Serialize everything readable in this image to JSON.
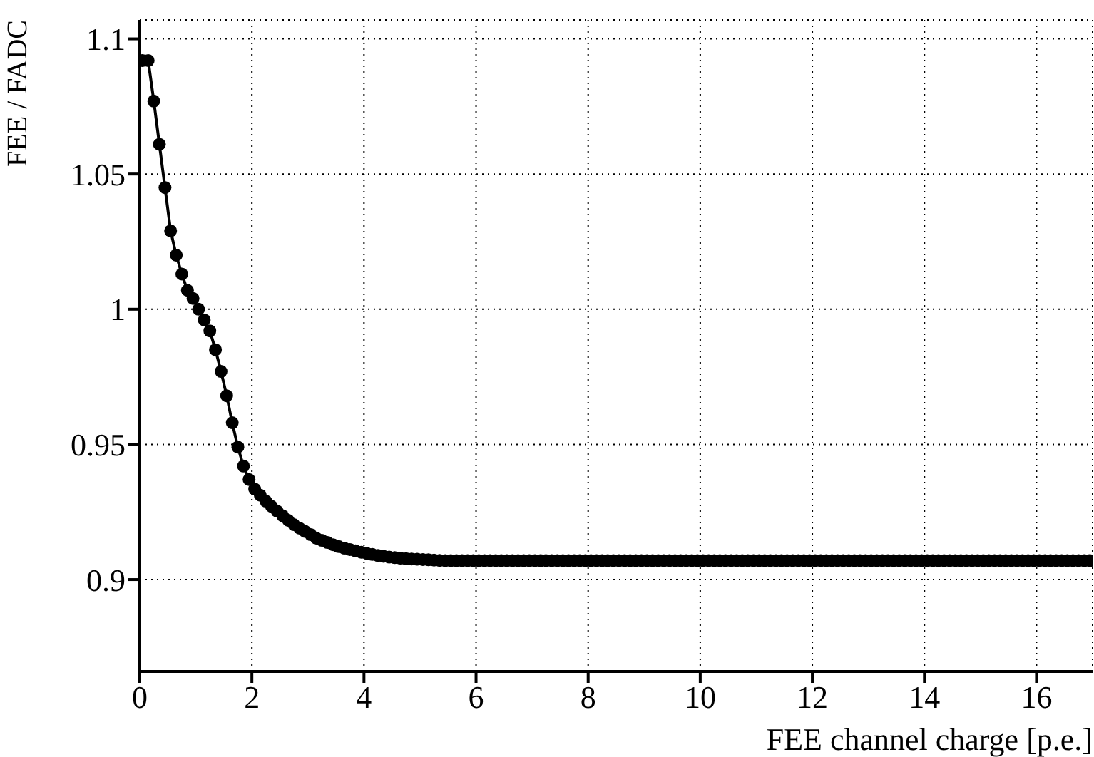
{
  "chart_data": {
    "type": "line",
    "xlabel": "FEE channel charge [p.e.]",
    "ylabel": "FEE / FADC",
    "xlim": [
      0,
      17
    ],
    "xticks": [
      0,
      2,
      4,
      6,
      8,
      10,
      12,
      14,
      16
    ],
    "ylim": [
      0.866,
      1.107
    ],
    "yticks": [
      0.9,
      0.95,
      1,
      1.05,
      1.1
    ],
    "grid": true,
    "marker": "circle",
    "line_style": "solid",
    "x": [
      0.05,
      0.15,
      0.25,
      0.35,
      0.45,
      0.55,
      0.65,
      0.75,
      0.85,
      0.95,
      1.05,
      1.15,
      1.25,
      1.35,
      1.45,
      1.55,
      1.65,
      1.75,
      1.85,
      1.95,
      2.05,
      2.15,
      2.25,
      2.35,
      2.45,
      2.55,
      2.65,
      2.75,
      2.85,
      2.95,
      3.05,
      3.15,
      3.25,
      3.35,
      3.45,
      3.55,
      3.65,
      3.75,
      3.85,
      3.95,
      4.05,
      4.15,
      4.25,
      4.35,
      4.45,
      4.55,
      4.65,
      4.75,
      4.85,
      4.95,
      5.05,
      5.15,
      5.25,
      5.35,
      5.45,
      5.55,
      5.65,
      5.75,
      5.85,
      5.95,
      6.05,
      6.15,
      6.25,
      6.35,
      6.45,
      6.55,
      6.65,
      6.75,
      6.85,
      6.95,
      7.05,
      7.15,
      7.25,
      7.35,
      7.45,
      7.55,
      7.65,
      7.75,
      7.85,
      7.95,
      8.05,
      8.15,
      8.25,
      8.35,
      8.45,
      8.55,
      8.65,
      8.75,
      8.85,
      8.95,
      9.05,
      9.15,
      9.25,
      9.35,
      9.45,
      9.55,
      9.65,
      9.75,
      9.85,
      9.95,
      10.05,
      10.15,
      10.25,
      10.35,
      10.45,
      10.55,
      10.65,
      10.75,
      10.85,
      10.95,
      11.05,
      11.15,
      11.25,
      11.35,
      11.45,
      11.55,
      11.65,
      11.75,
      11.85,
      11.95,
      12.05,
      12.15,
      12.25,
      12.35,
      12.45,
      12.55,
      12.65,
      12.75,
      12.85,
      12.95,
      13.05,
      13.15,
      13.25,
      13.35,
      13.45,
      13.55,
      13.65,
      13.75,
      13.85,
      13.95,
      14.05,
      14.15,
      14.25,
      14.35,
      14.45,
      14.55,
      14.65,
      14.75,
      14.85,
      14.95,
      15.05,
      15.15,
      15.25,
      15.35,
      15.45,
      15.55,
      15.65,
      15.75,
      15.85,
      15.95,
      16.05,
      16.15,
      16.25,
      16.35,
      16.45,
      16.55,
      16.65,
      16.75,
      16.85,
      16.95
    ],
    "series": [
      {
        "color": "#000000",
        "values": [
          1.092,
          1.092,
          1.077,
          1.061,
          1.045,
          1.029,
          1.02,
          1.013,
          1.007,
          1.004,
          1.0,
          0.996,
          0.992,
          0.985,
          0.977,
          0.968,
          0.958,
          0.949,
          0.942,
          0.937,
          0.9335,
          0.9312,
          0.929,
          0.9271,
          0.9253,
          0.9236,
          0.9219,
          0.9203,
          0.919,
          0.9178,
          0.9166,
          0.9153,
          0.9145,
          0.9137,
          0.9129,
          0.9122,
          0.9116,
          0.9111,
          0.9106,
          0.9101,
          0.9097,
          0.9093,
          0.9089,
          0.9086,
          0.9083,
          0.9081,
          0.9079,
          0.9077,
          0.9076,
          0.9075,
          0.9074,
          0.9073,
          0.9072,
          0.9071,
          0.907,
          0.907,
          0.907,
          0.907,
          0.907,
          0.907,
          0.907,
          0.907,
          0.907,
          0.907,
          0.907,
          0.907,
          0.907,
          0.907,
          0.907,
          0.907,
          0.907,
          0.907,
          0.907,
          0.907,
          0.907,
          0.907,
          0.907,
          0.907,
          0.907,
          0.907,
          0.907,
          0.907,
          0.907,
          0.907,
          0.907,
          0.907,
          0.907,
          0.907,
          0.907,
          0.907,
          0.907,
          0.907,
          0.907,
          0.907,
          0.907,
          0.907,
          0.907,
          0.907,
          0.907,
          0.907,
          0.907,
          0.907,
          0.907,
          0.907,
          0.907,
          0.907,
          0.907,
          0.907,
          0.907,
          0.907,
          0.907,
          0.907,
          0.907,
          0.907,
          0.907,
          0.907,
          0.907,
          0.907,
          0.907,
          0.907,
          0.907,
          0.907,
          0.907,
          0.907,
          0.907,
          0.907,
          0.907,
          0.907,
          0.907,
          0.907,
          0.907,
          0.907,
          0.907,
          0.907,
          0.907,
          0.907,
          0.907,
          0.907,
          0.907,
          0.907,
          0.907,
          0.907,
          0.907,
          0.907,
          0.907,
          0.907,
          0.907,
          0.907,
          0.907,
          0.907,
          0.907,
          0.907,
          0.907,
          0.907,
          0.907,
          0.907,
          0.907,
          0.907,
          0.907,
          0.907,
          0.907,
          0.907,
          0.907,
          0.907,
          0.907,
          0.907,
          0.907,
          0.907,
          0.907,
          0.907
        ]
      }
    ]
  }
}
